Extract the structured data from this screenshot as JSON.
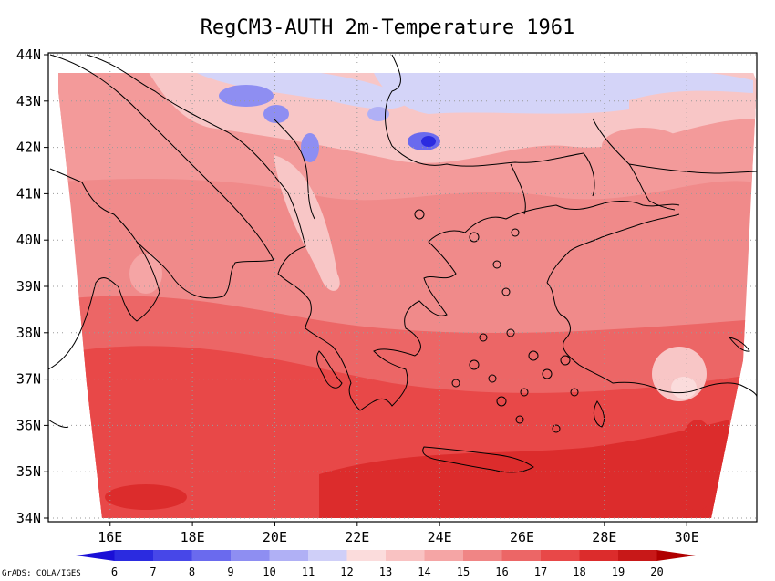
{
  "title": "RegCM3-AUTH 2m-Temperature 1961",
  "credit": "GrADS: COLA/IGES",
  "lat_labels": [
    "44N",
    "43N",
    "42N",
    "41N",
    "40N",
    "39N",
    "38N",
    "37N",
    "36N",
    "35N",
    "34N"
  ],
  "lon_labels": [
    "16E",
    "18E",
    "20E",
    "22E",
    "24E",
    "26E",
    "28E",
    "30E"
  ],
  "colorbar": {
    "labels": [
      "6",
      "7",
      "8",
      "9",
      "10",
      "11",
      "12",
      "13",
      "14",
      "15",
      "16",
      "17",
      "18",
      "19",
      "20"
    ],
    "colors": [
      "#1a0fd6",
      "#2b2be0",
      "#4747e8",
      "#6a6aee",
      "#8e8ef2",
      "#b0b0f5",
      "#cfcff8",
      "#fbdcdc",
      "#f9c2c2",
      "#f5a5a5",
      "#f08585",
      "#ec6666",
      "#e84848",
      "#dc2c2c",
      "#c81818",
      "#b00000"
    ]
  },
  "map": {
    "lon_range": [
      14.5,
      31.7
    ],
    "lat_range": [
      34,
      44
    ],
    "colors": {
      "ocean_dark": "#e03c3c",
      "warm": "#ec6a6a",
      "mid": "#f39a9a",
      "light": "#f8c6c6",
      "cold_light": "#d4d4f8",
      "cold": "#6a6aee"
    }
  }
}
